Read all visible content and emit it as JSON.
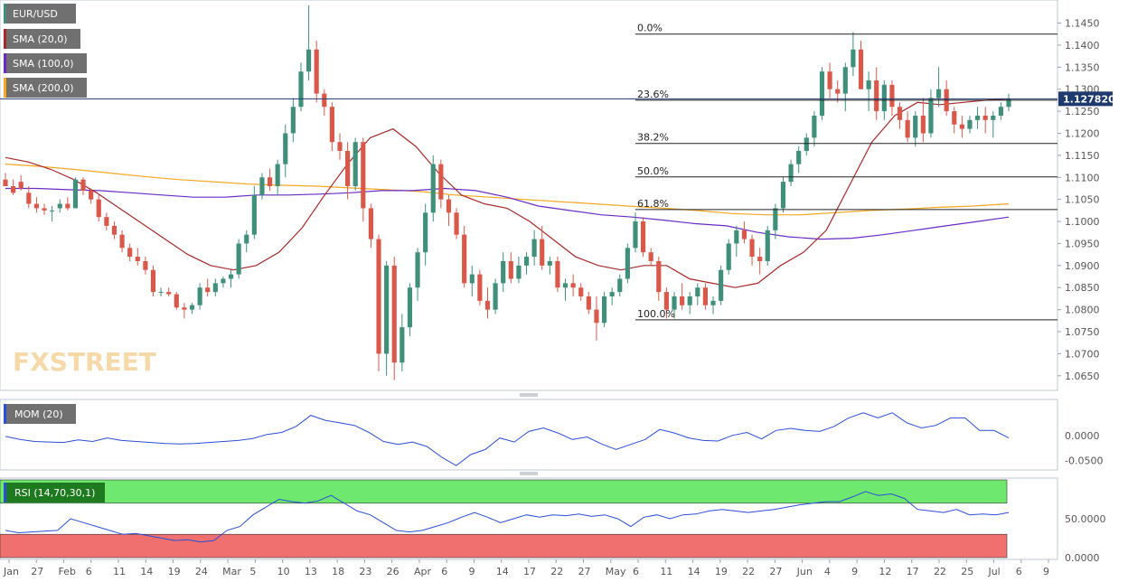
{
  "legend": {
    "symbol": "EUR/USD",
    "sma20": "SMA (20,0)",
    "sma100": "SMA (100,0)",
    "sma200": "SMA (200,0)",
    "mom": "MOM (20)",
    "rsi": "RSI (14,70,30,1)"
  },
  "watermark": "FXSTREET",
  "colors": {
    "bull": "#3f8f7a",
    "bear": "#d9584a",
    "sma20": "#a52a2a",
    "sma100": "#6a2bc4",
    "sma200": "#f5a623",
    "mom": "#2a4fd6",
    "rsi_over": "#6fe86f",
    "rsi_under": "#f07070"
  },
  "chart_data": [
    {
      "type": "candlestick",
      "id": "price",
      "title": "EUR/USD",
      "ylim": [
        1.0625,
        1.149
      ],
      "y_ticks": [
        "1.1450",
        "1.1400",
        "1.1350",
        "1.1300",
        "1.1250",
        "1.1200",
        "1.1150",
        "1.1100",
        "1.1050",
        "1.1000",
        "1.0950",
        "1.0900",
        "1.0850",
        "1.0800",
        "1.0750",
        "1.0700",
        "1.0650"
      ],
      "x_ticks": [
        "Jan",
        "27",
        "Feb",
        "6",
        "11",
        "14",
        "19",
        "24",
        "Mar",
        "5",
        "10",
        "13",
        "18",
        "23",
        "26",
        "Apr",
        "6",
        "9",
        "14",
        "17",
        "22",
        "27",
        "May",
        "6",
        "11",
        "14",
        "19",
        "22",
        "27",
        "Jun",
        "4",
        "9",
        "12",
        "17",
        "22",
        "25",
        "Jul",
        "6",
        "9"
      ],
      "last_price": "1.127820",
      "fibonacci": [
        {
          "label": "0.0%",
          "value": 1.1425
        },
        {
          "label": "23.6%",
          "value": 1.1275
        },
        {
          "label": "38.2%",
          "value": 1.1177
        },
        {
          "label": "50.0%",
          "value": 1.1101
        },
        {
          "label": "61.8%",
          "value": 1.1027
        },
        {
          "label": "100.0%",
          "value": 1.0777
        }
      ],
      "candles": [
        [
          1.1095,
          1.111,
          1.1085,
          1.108
        ],
        [
          1.108,
          1.1095,
          1.106,
          1.1065
        ],
        [
          1.109,
          1.1105,
          1.107,
          1.1075
        ],
        [
          1.1065,
          1.108,
          1.103,
          1.104
        ],
        [
          1.104,
          1.1055,
          1.102,
          1.103
        ],
        [
          1.103,
          1.104,
          1.1015,
          1.1025
        ],
        [
          1.1025,
          1.1035,
          1.1,
          1.1025
        ],
        [
          1.103,
          1.105,
          1.102,
          1.104
        ],
        [
          1.104,
          1.1055,
          1.1025,
          1.103
        ],
        [
          1.103,
          1.11,
          1.103,
          1.1095
        ],
        [
          1.1095,
          1.11,
          1.106,
          1.107
        ],
        [
          1.107,
          1.1075,
          1.104,
          1.105
        ],
        [
          1.105,
          1.106,
          1.1,
          1.101
        ],
        [
          1.101,
          1.102,
          1.098,
          1.099
        ],
        [
          1.099,
          1.1,
          1.096,
          1.097
        ],
        [
          1.097,
          1.098,
          1.093,
          1.094
        ],
        [
          1.094,
          1.095,
          1.091,
          1.092
        ],
        [
          1.092,
          1.094,
          1.09,
          1.091
        ],
        [
          1.091,
          1.092,
          1.088,
          1.089
        ],
        [
          1.089,
          1.09,
          1.083,
          1.084
        ],
        [
          1.084,
          1.085,
          1.083,
          1.084
        ],
        [
          1.084,
          1.085,
          1.083,
          1.0835
        ],
        [
          1.0835,
          1.084,
          1.08,
          1.0805
        ],
        [
          1.0805,
          1.0815,
          1.078,
          1.08
        ],
        [
          1.08,
          1.0815,
          1.079,
          1.081
        ],
        [
          1.081,
          1.086,
          1.08,
          1.085
        ],
        [
          1.085,
          1.087,
          1.083,
          1.084
        ],
        [
          1.084,
          1.087,
          1.083,
          1.086
        ],
        [
          1.086,
          1.0875,
          1.085,
          1.087
        ],
        [
          1.087,
          1.089,
          1.085,
          1.088
        ],
        [
          1.088,
          1.096,
          1.087,
          1.095
        ],
        [
          1.095,
          1.098,
          1.093,
          1.097
        ],
        [
          1.097,
          1.108,
          1.096,
          1.106
        ],
        [
          1.106,
          1.111,
          1.105,
          1.11
        ],
        [
          1.11,
          1.112,
          1.107,
          1.108
        ],
        [
          1.108,
          1.114,
          1.106,
          1.113
        ],
        [
          1.113,
          1.122,
          1.11,
          1.12
        ],
        [
          1.12,
          1.128,
          1.118,
          1.126
        ],
        [
          1.126,
          1.136,
          1.125,
          1.134
        ],
        [
          1.134,
          1.149,
          1.132,
          1.139
        ],
        [
          1.139,
          1.141,
          1.127,
          1.129
        ],
        [
          1.129,
          1.13,
          1.124,
          1.126
        ],
        [
          1.126,
          1.127,
          1.116,
          1.118
        ],
        [
          1.118,
          1.12,
          1.114,
          1.116
        ],
        [
          1.116,
          1.118,
          1.105,
          1.108
        ],
        [
          1.108,
          1.119,
          1.107,
          1.118
        ],
        [
          1.118,
          1.119,
          1.1,
          1.103
        ],
        [
          1.103,
          1.104,
          1.094,
          1.096
        ],
        [
          1.096,
          1.097,
          1.066,
          1.07
        ],
        [
          1.07,
          1.091,
          1.065,
          1.09
        ],
        [
          1.09,
          1.092,
          1.064,
          1.068
        ],
        [
          1.068,
          1.079,
          1.066,
          1.076
        ],
        [
          1.076,
          1.086,
          1.074,
          1.085
        ],
        [
          1.085,
          1.094,
          1.082,
          1.093
        ],
        [
          1.093,
          1.104,
          1.09,
          1.102
        ],
        [
          1.102,
          1.115,
          1.1,
          1.113
        ],
        [
          1.113,
          1.114,
          1.103,
          1.105
        ],
        [
          1.105,
          1.106,
          1.099,
          1.102
        ],
        [
          1.102,
          1.103,
          1.096,
          1.097
        ],
        [
          1.097,
          1.099,
          1.085,
          1.086
        ],
        [
          1.086,
          1.09,
          1.083,
          1.088
        ],
        [
          1.088,
          1.089,
          1.081,
          1.082
        ],
        [
          1.082,
          1.085,
          1.078,
          1.08
        ],
        [
          1.08,
          1.087,
          1.079,
          1.086
        ],
        [
          1.086,
          1.093,
          1.084,
          1.091
        ],
        [
          1.091,
          1.093,
          1.086,
          1.087
        ],
        [
          1.087,
          1.092,
          1.086,
          1.09
        ],
        [
          1.09,
          1.093,
          1.088,
          1.092
        ],
        [
          1.092,
          1.098,
          1.09,
          1.096
        ],
        [
          1.096,
          1.099,
          1.089,
          1.09
        ],
        [
          1.09,
          1.092,
          1.088,
          1.091
        ],
        [
          1.091,
          1.092,
          1.084,
          1.085
        ],
        [
          1.085,
          1.087,
          1.082,
          1.086
        ],
        [
          1.086,
          1.088,
          1.083,
          1.085
        ],
        [
          1.085,
          1.086,
          1.082,
          1.083
        ],
        [
          1.083,
          1.084,
          1.079,
          1.08
        ],
        [
          1.08,
          1.083,
          1.073,
          1.077
        ],
        [
          1.077,
          1.084,
          1.076,
          1.083
        ],
        [
          1.083,
          1.085,
          1.081,
          1.084
        ],
        [
          1.084,
          1.088,
          1.083,
          1.087
        ],
        [
          1.087,
          1.095,
          1.086,
          1.094
        ],
        [
          1.094,
          1.102,
          1.093,
          1.1
        ],
        [
          1.1,
          1.101,
          1.092,
          1.093
        ],
        [
          1.093,
          1.094,
          1.09,
          1.091
        ],
        [
          1.091,
          1.092,
          1.082,
          1.084
        ],
        [
          1.084,
          1.085,
          1.078,
          1.08
        ],
        [
          1.08,
          1.084,
          1.078,
          1.083
        ],
        [
          1.083,
          1.086,
          1.08,
          1.081
        ],
        [
          1.081,
          1.084,
          1.079,
          1.083
        ],
        [
          1.083,
          1.086,
          1.081,
          1.085
        ],
        [
          1.085,
          1.086,
          1.08,
          1.081
        ],
        [
          1.081,
          1.083,
          1.079,
          1.082
        ],
        [
          1.082,
          1.09,
          1.081,
          1.089
        ],
        [
          1.089,
          1.096,
          1.088,
          1.095
        ],
        [
          1.095,
          1.099,
          1.092,
          1.098
        ],
        [
          1.098,
          1.1,
          1.095,
          1.096
        ],
        [
          1.096,
          1.097,
          1.09,
          1.092
        ],
        [
          1.092,
          1.094,
          1.088,
          1.091
        ],
        [
          1.091,
          1.099,
          1.09,
          1.098
        ],
        [
          1.098,
          1.104,
          1.096,
          1.103
        ],
        [
          1.103,
          1.11,
          1.102,
          1.109
        ],
        [
          1.109,
          1.114,
          1.108,
          1.113
        ],
        [
          1.113,
          1.117,
          1.111,
          1.116
        ],
        [
          1.116,
          1.12,
          1.115,
          1.119
        ],
        [
          1.119,
          1.125,
          1.117,
          1.124
        ],
        [
          1.124,
          1.135,
          1.123,
          1.134
        ],
        [
          1.134,
          1.136,
          1.128,
          1.13
        ],
        [
          1.13,
          1.132,
          1.127,
          1.129
        ],
        [
          1.129,
          1.136,
          1.125,
          1.135
        ],
        [
          1.135,
          1.143,
          1.133,
          1.139
        ],
        [
          1.139,
          1.141,
          1.13,
          1.13
        ],
        [
          1.13,
          1.134,
          1.125,
          1.132
        ],
        [
          1.132,
          1.135,
          1.123,
          1.125
        ],
        [
          1.125,
          1.132,
          1.123,
          1.131
        ],
        [
          1.131,
          1.132,
          1.124,
          1.126
        ],
        [
          1.126,
          1.127,
          1.121,
          1.123
        ],
        [
          1.123,
          1.125,
          1.118,
          1.119
        ],
        [
          1.119,
          1.125,
          1.117,
          1.124
        ],
        [
          1.124,
          1.128,
          1.118,
          1.12
        ],
        [
          1.12,
          1.13,
          1.119,
          1.128
        ],
        [
          1.128,
          1.135,
          1.126,
          1.13
        ],
        [
          1.13,
          1.132,
          1.124,
          1.125
        ],
        [
          1.125,
          1.126,
          1.12,
          1.122
        ],
        [
          1.122,
          1.124,
          1.119,
          1.121
        ],
        [
          1.121,
          1.124,
          1.12,
          1.123
        ],
        [
          1.123,
          1.126,
          1.121,
          1.124
        ],
        [
          1.124,
          1.126,
          1.12,
          1.123
        ],
        [
          1.123,
          1.125,
          1.119,
          1.124
        ],
        [
          1.124,
          1.127,
          1.123,
          1.126
        ],
        [
          1.126,
          1.129,
          1.125,
          1.1278
        ]
      ],
      "sma20": [
        1.1145,
        1.1135,
        1.1118,
        1.1095,
        1.1065,
        1.103,
        1.0995,
        1.096,
        1.0925,
        1.09,
        1.089,
        1.09,
        1.093,
        1.0985,
        1.106,
        1.113,
        1.119,
        1.121,
        1.117,
        1.111,
        1.106,
        1.104,
        1.103,
        1.1,
        1.096,
        1.092,
        1.09,
        1.089,
        1.09,
        1.09,
        1.087,
        1.086,
        1.085,
        1.086,
        1.09,
        1.093,
        1.098,
        1.108,
        1.118,
        1.124,
        1.127,
        1.1265,
        1.127,
        1.1275,
        1.1278
      ],
      "sma100": [
        1.1075,
        1.1075,
        1.1072,
        1.107,
        1.1065,
        1.106,
        1.1055,
        1.1055,
        1.106,
        1.106,
        1.1062,
        1.1065,
        1.107,
        1.107,
        1.1075,
        1.107,
        1.1055,
        1.1035,
        1.1025,
        1.1015,
        1.101,
        1.1003,
        1.0995,
        1.099,
        1.0975,
        1.0965,
        1.096,
        1.0962,
        1.097,
        1.098,
        1.099,
        1.1,
        1.101
      ],
      "sma200": [
        1.113,
        1.1125,
        1.1118,
        1.111,
        1.1102,
        1.1095,
        1.109,
        1.1085,
        1.1082,
        1.108,
        1.1076,
        1.1072,
        1.1068,
        1.106,
        1.1055,
        1.105,
        1.1045,
        1.104,
        1.1035,
        1.103,
        1.1025,
        1.1018,
        1.1015,
        1.1015,
        1.102,
        1.1025,
        1.1028,
        1.1032,
        1.1035,
        1.104
      ],
      "x_index": {
        "first_candle": 0,
        "last_candle": 131
      }
    },
    {
      "type": "line",
      "id": "momentum",
      "title": "MOM (20)",
      "ylim": [
        -0.065,
        0.068
      ],
      "y_ticks": [
        "0.0000",
        "-0.0500"
      ],
      "values": [
        -0.002,
        -0.008,
        -0.012,
        -0.013,
        -0.014,
        -0.009,
        -0.012,
        -0.005,
        -0.01,
        -0.012,
        -0.014,
        -0.016,
        -0.017,
        -0.016,
        -0.014,
        -0.012,
        -0.01,
        -0.006,
        0.002,
        0.006,
        0.018,
        0.04,
        0.03,
        0.025,
        0.02,
        0.006,
        -0.012,
        -0.018,
        -0.013,
        -0.022,
        -0.043,
        -0.06,
        -0.038,
        -0.028,
        -0.005,
        -0.013,
        0.008,
        0.015,
        0.005,
        -0.008,
        -0.003,
        -0.017,
        -0.028,
        -0.018,
        -0.008,
        0.012,
        0.005,
        -0.005,
        -0.01,
        -0.011,
        0.0,
        0.006,
        -0.007,
        0.01,
        0.014,
        0.01,
        0.008,
        0.018,
        0.035,
        0.045,
        0.035,
        0.045,
        0.025,
        0.015,
        0.02,
        0.035,
        0.035,
        0.01,
        0.01,
        -0.005
      ],
      "x_index_range": [
        0,
        131
      ]
    },
    {
      "type": "line",
      "id": "rsi",
      "title": "RSI (14,70,30,1)",
      "ylim": [
        0,
        100
      ],
      "y_ticks": [
        "50.0000",
        "0.0000"
      ],
      "overbought": 70,
      "oversold": 30,
      "values": [
        35,
        32,
        33,
        34,
        35,
        50,
        45,
        40,
        35,
        30,
        31,
        28,
        25,
        22,
        23,
        20,
        22,
        35,
        40,
        55,
        65,
        75,
        72,
        70,
        73,
        80,
        70,
        60,
        55,
        45,
        35,
        33,
        35,
        40,
        45,
        52,
        58,
        52,
        45,
        50,
        55,
        52,
        55,
        54,
        56,
        53,
        55,
        50,
        40,
        52,
        55,
        50,
        55,
        56,
        60,
        62,
        60,
        58,
        60,
        62,
        65,
        68,
        70,
        72,
        72,
        78,
        85,
        80,
        82,
        76,
        62,
        60,
        58,
        62,
        55,
        56,
        55,
        58
      ],
      "x_index_range": [
        0,
        131
      ]
    }
  ]
}
